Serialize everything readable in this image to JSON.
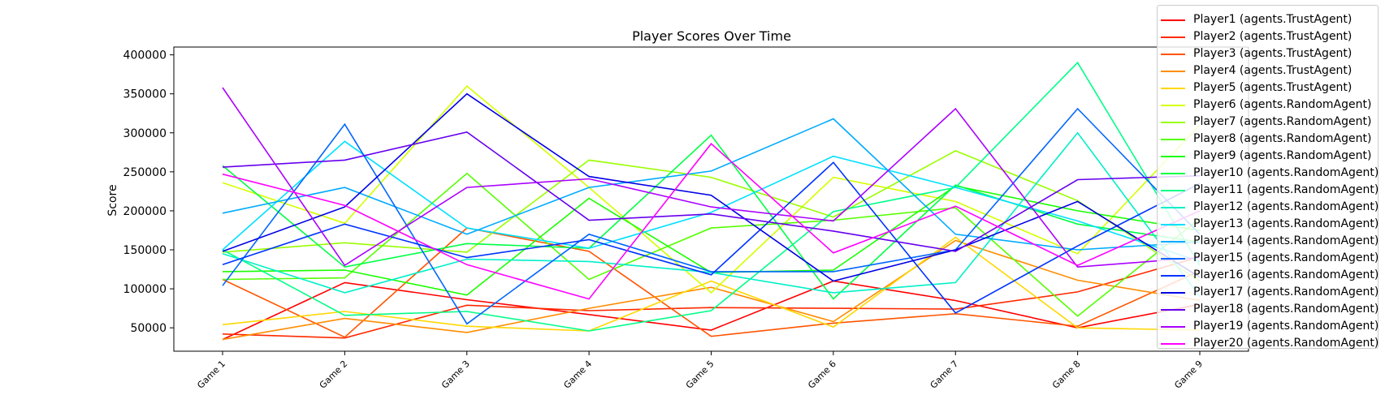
{
  "chart_data": {
    "type": "line",
    "title": "Player Scores Over Time",
    "xlabel": "",
    "ylabel": "Score",
    "categories": [
      "Game 1",
      "Game 2",
      "Game 3",
      "Game 4",
      "Game 5",
      "Game 6",
      "Game 7",
      "Game 8",
      "Game 9"
    ],
    "ylim": [
      20000,
      410000
    ],
    "yticks": [
      50000,
      100000,
      150000,
      200000,
      250000,
      300000,
      350000,
      400000
    ],
    "ytick_labels": [
      "50000",
      "100000",
      "150000",
      "200000",
      "250000",
      "300000",
      "350000",
      "400000"
    ],
    "grid": false,
    "legend_position": "upper-right",
    "series": [
      {
        "name": "Player1 (agents.TrustAgent)",
        "color": "#ff0000",
        "values": [
          35000,
          108000,
          86000,
          67000,
          47000,
          110000,
          85000,
          50000,
          80000
        ]
      },
      {
        "name": "Player2 (agents.TrustAgent)",
        "color": "#ff2a00",
        "values": [
          42000,
          37000,
          79000,
          72000,
          76000,
          75000,
          74000,
          96000,
          141000
        ]
      },
      {
        "name": "Player3 (agents.TrustAgent)",
        "color": "#ff5500",
        "values": [
          112000,
          38000,
          178000,
          148000,
          39000,
          56000,
          68000,
          52000,
          123000
        ]
      },
      {
        "name": "Player4 (agents.TrustAgent)",
        "color": "#ff8c00",
        "values": [
          35000,
          62000,
          44000,
          75000,
          102000,
          58000,
          162000,
          111000,
          85000
        ]
      },
      {
        "name": "Player5 (agents.TrustAgent)",
        "color": "#ffd700",
        "values": [
          54000,
          71000,
          52000,
          46000,
          110000,
          51000,
          166000,
          50000,
          47000
        ]
      },
      {
        "name": "Player6 (agents.RandomAgent)",
        "color": "#d4ff00",
        "values": [
          236000,
          184000,
          360000,
          230000,
          95000,
          243000,
          212000,
          145000,
          310000
        ]
      },
      {
        "name": "Player7 (agents.RandomAgent)",
        "color": "#99ff00",
        "values": [
          147000,
          159000,
          147000,
          265000,
          243000,
          192000,
          277000,
          213000,
          110000
        ]
      },
      {
        "name": "Player8 (agents.RandomAgent)",
        "color": "#55ff00",
        "values": [
          112000,
          114000,
          248000,
          112000,
          178000,
          188000,
          204000,
          65000,
          190000
        ]
      },
      {
        "name": "Player9 (agents.RandomAgent)",
        "color": "#1aff00",
        "values": [
          122000,
          124000,
          92000,
          216000,
          121000,
          124000,
          232000,
          200000,
          175000
        ]
      },
      {
        "name": "Player10 (agents.RandomAgent)",
        "color": "#00ff44",
        "values": [
          258000,
          128000,
          158000,
          152000,
          297000,
          87000,
          233000,
          183000,
          160000
        ]
      },
      {
        "name": "Player11 (agents.RandomAgent)",
        "color": "#00ff88",
        "values": [
          150000,
          66000,
          71000,
          46000,
          72000,
          199000,
          230000,
          390000,
          130000
        ]
      },
      {
        "name": "Player12 (agents.RandomAgent)",
        "color": "#00f0c8",
        "values": [
          145000,
          95000,
          138000,
          135000,
          121000,
          95000,
          108000,
          300000,
          90000
        ]
      },
      {
        "name": "Player13 (agents.RandomAgent)",
        "color": "#00e0ff",
        "values": [
          150000,
          289000,
          178000,
          152000,
          198000,
          270000,
          230000,
          187000,
          135000
        ]
      },
      {
        "name": "Player14 (agents.RandomAgent)",
        "color": "#00aaff",
        "values": [
          197000,
          230000,
          170000,
          230000,
          251000,
          318000,
          170000,
          150000,
          160000
        ]
      },
      {
        "name": "Player15 (agents.RandomAgent)",
        "color": "#0066ff",
        "values": [
          104000,
          311000,
          55000,
          170000,
          122000,
          122000,
          150000,
          331000,
          170000
        ]
      },
      {
        "name": "Player16 (agents.RandomAgent)",
        "color": "#0033ff",
        "values": [
          131000,
          183000,
          140000,
          163000,
          118000,
          262000,
          69000,
          155000,
          235000
        ]
      },
      {
        "name": "Player17 (agents.RandomAgent)",
        "color": "#0000e6",
        "values": [
          148000,
          205000,
          350000,
          244000,
          220000,
          110000,
          150000,
          212000,
          115000
        ]
      },
      {
        "name": "Player18 (agents.RandomAgent)",
        "color": "#6600ee",
        "values": [
          256000,
          265000,
          301000,
          188000,
          196000,
          174000,
          148000,
          240000,
          245000
        ]
      },
      {
        "name": "Player19 (agents.RandomAgent)",
        "color": "#aa00ff",
        "values": [
          358000,
          130000,
          230000,
          241000,
          205000,
          187000,
          331000,
          128000,
          140000
        ]
      },
      {
        "name": "Player20 (agents.RandomAgent)",
        "color": "#ff00ff",
        "values": [
          247000,
          207000,
          131000,
          87000,
          286000,
          146000,
          206000,
          130000,
          200000
        ]
      }
    ]
  }
}
